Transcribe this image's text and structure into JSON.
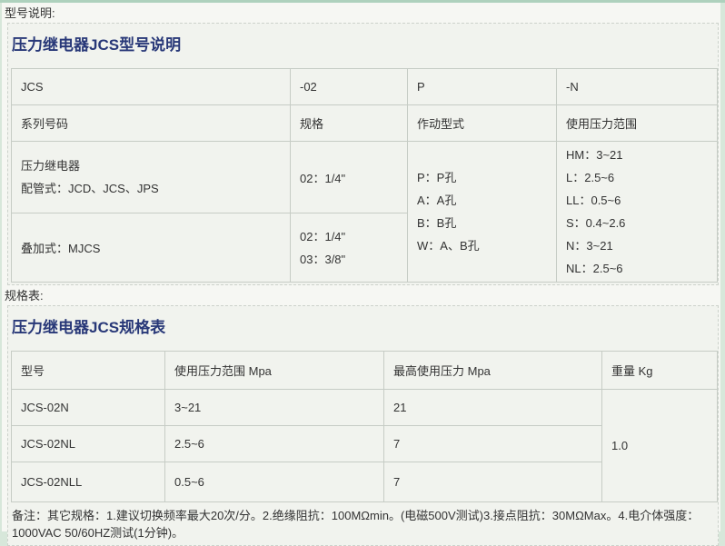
{
  "page": {
    "section1_label": "型号说明:",
    "section2_label": "规格表:"
  },
  "colors": {
    "panel_title": "#283878",
    "page_background": "#f6f7f3",
    "panel_background": "#f1f3ee",
    "edge_green": "#aed1bd"
  },
  "model_table": {
    "title": "压力继电器JCS型号说明",
    "header_row": [
      "JCS",
      "-02",
      "P",
      "-N"
    ],
    "subheader_row": [
      "系列号码",
      "规格",
      "作动型式",
      "使用压力范围"
    ],
    "piping_row": {
      "name_line1": "压力继电器",
      "name_line2": "配管式：JCD、JCS、JPS",
      "spec": "02：1/4\""
    },
    "stacking_row": {
      "name": "叠加式：MJCS",
      "spec_line1": "02：1/4\"",
      "spec_line2": "03：3/8\""
    },
    "action_types": [
      "P：P孔",
      "A：A孔",
      "B：B孔",
      "W：A、B孔"
    ],
    "pressure_ranges": [
      "HM：3~21",
      "L：2.5~6",
      "LL：0.5~6",
      "S：0.4~2.6",
      "N：3~21",
      "NL：2.5~6"
    ]
  },
  "spec_table": {
    "title": "压力继电器JCS规格表",
    "headers": [
      "型号",
      "使用压力范围 Mpa",
      "最高使用压力 Mpa",
      "重量 Kg"
    ],
    "rows": [
      {
        "model": "JCS-02N",
        "range": "3~21",
        "max": "21"
      },
      {
        "model": "JCS-02NL",
        "range": "2.5~6",
        "max": "7"
      },
      {
        "model": "JCS-02NLL",
        "range": "0.5~6",
        "max": "7"
      }
    ],
    "weight": "1.0"
  },
  "note": "备注：其它规格：1.建议切换频率最大20次/分。2.绝缘阻抗：100MΩmin。(电磁500V测试)3.接点阻抗：30MΩMax。4.电介体强度：1000VAC 50/60HZ测试(1分钟)。"
}
